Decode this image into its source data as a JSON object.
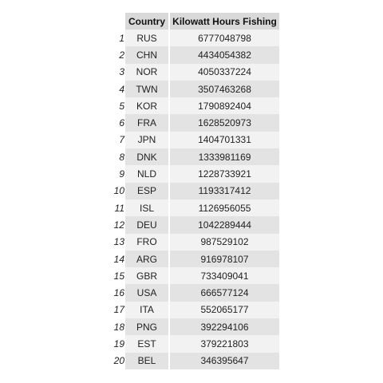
{
  "table": {
    "columns": [
      "Country",
      "Kilowatt Hours Fishing"
    ],
    "rows": [
      {
        "index": "1",
        "country": "RUS",
        "kwh": "6777048798"
      },
      {
        "index": "2",
        "country": "CHN",
        "kwh": "4434054382"
      },
      {
        "index": "3",
        "country": "NOR",
        "kwh": "4050337224"
      },
      {
        "index": "4",
        "country": "TWN",
        "kwh": "3507463268"
      },
      {
        "index": "5",
        "country": "KOR",
        "kwh": "1790892404"
      },
      {
        "index": "6",
        "country": "FRA",
        "kwh": "1628520973"
      },
      {
        "index": "7",
        "country": "JPN",
        "kwh": "1404701331"
      },
      {
        "index": "8",
        "country": "DNK",
        "kwh": "1333981169"
      },
      {
        "index": "9",
        "country": "NLD",
        "kwh": "1228733921"
      },
      {
        "index": "10",
        "country": "ESP",
        "kwh": "1193317412"
      },
      {
        "index": "11",
        "country": "ISL",
        "kwh": "1126956055"
      },
      {
        "index": "12",
        "country": "DEU",
        "kwh": "1042289444"
      },
      {
        "index": "13",
        "country": "FRO",
        "kwh": "987529102"
      },
      {
        "index": "14",
        "country": "ARG",
        "kwh": "916978107"
      },
      {
        "index": "15",
        "country": "GBR",
        "kwh": "733409041"
      },
      {
        "index": "16",
        "country": "USA",
        "kwh": "666577124"
      },
      {
        "index": "17",
        "country": "ITA",
        "kwh": "552065177"
      },
      {
        "index": "18",
        "country": "PNG",
        "kwh": "392294106"
      },
      {
        "index": "19",
        "country": "EST",
        "kwh": "379221803"
      },
      {
        "index": "20",
        "country": "BEL",
        "kwh": "346395647"
      }
    ]
  },
  "chart_data": {
    "type": "table",
    "columns": [
      "Country",
      "Kilowatt Hours Fishing"
    ],
    "categories": [
      "RUS",
      "CHN",
      "NOR",
      "TWN",
      "KOR",
      "FRA",
      "JPN",
      "DNK",
      "NLD",
      "ESP",
      "ISL",
      "DEU",
      "FRO",
      "ARG",
      "GBR",
      "USA",
      "ITA",
      "PNG",
      "EST",
      "BEL"
    ],
    "values": [
      6777048798,
      4434054382,
      4050337224,
      3507463268,
      1790892404,
      1628520973,
      1404701331,
      1333981169,
      1228733921,
      1193317412,
      1126956055,
      1042289444,
      987529102,
      916978107,
      733409041,
      666577124,
      552065177,
      392294106,
      379221803,
      346395647
    ]
  },
  "colors": {
    "header_bg": "#d9d9d9",
    "row_light": "#f2f2f2",
    "row_dark": "#e3e3e3"
  }
}
